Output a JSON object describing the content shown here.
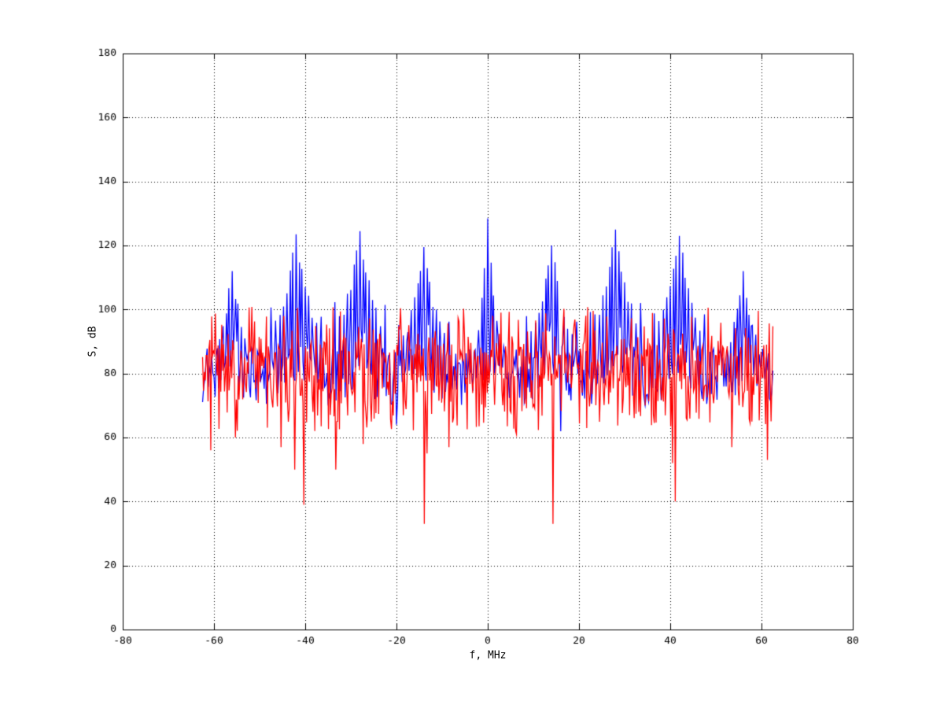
{
  "window": {
    "background": "#ffffff"
  },
  "chart_data": {
    "type": "line",
    "title": "",
    "xlabel": "f, MHz",
    "ylabel": "S, dB",
    "xlim": [
      -80,
      80
    ],
    "ylim": [
      0,
      180
    ],
    "xticks": [
      -80,
      -60,
      -40,
      -20,
      0,
      20,
      40,
      60,
      80
    ],
    "yticks": [
      0,
      20,
      40,
      60,
      80,
      100,
      120,
      140,
      160,
      180
    ],
    "grid": {
      "visible": true,
      "line_style": "dotted",
      "color": "#000000"
    },
    "background": "#ffffff",
    "axis_color": "#000000",
    "legend": null,
    "description": "Two overlaid dense noisy spectra from -62.5 to 62.5 MHz. Blue spectrum: noise floor near 80 dB with comb of peak clusters every 14 MHz (tallest 128.5 dB at 0 MHz, ~120-125 dB at +/-14, +/-28, +/-42, ~112 dB at +/-56). Red spectrum: dense noise band 62-100 dB with narrow deep notches down to 33-40 dB near -40, -14, +14 and +41 MHz.",
    "series": [
      {
        "name": "blue-spectrum",
        "color": "#0000ff",
        "draw_order": 1,
        "line_width": 1.25,
        "f_start": -62.5,
        "f_end": 62.5,
        "step": 0.25,
        "noise_base": 79,
        "noise_spread": 9,
        "skirt": {
          "width": 5,
          "amp": 13
        },
        "carrier_spacing_mhz": 14,
        "clusters": [
          {
            "f": 0,
            "peak": 128.5,
            "side_scale": 2.0
          },
          {
            "f": -14,
            "peak": 119.5,
            "side_scale": 1
          },
          {
            "f": 14,
            "peak": 120,
            "side_scale": 1
          },
          {
            "f": -28,
            "peak": 124.5,
            "side_scale": 1
          },
          {
            "f": 28,
            "peak": 125,
            "side_scale": 1
          },
          {
            "f": -42,
            "peak": 123.5,
            "side_scale": 1
          },
          {
            "f": 42,
            "peak": 123,
            "side_scale": 1
          },
          {
            "f": -56,
            "peak": 112,
            "side_scale": 1
          },
          {
            "f": 56,
            "peak": 112,
            "side_scale": 1
          }
        ],
        "side_offsets": [
          0,
          0.7,
          -0.7,
          1.35,
          -1.35,
          2.05,
          -2.05,
          2.75,
          -2.75,
          3.5,
          -3.5,
          4.5,
          -4.5,
          5.5,
          -5.5
        ],
        "side_drops": [
          0,
          7,
          7,
          12,
          12,
          17,
          17,
          21,
          21,
          25,
          25,
          28,
          28,
          24,
          24
        ],
        "dips": [
          {
            "f": -20,
            "v": 64
          },
          {
            "f": 15.9,
            "v": 62
          }
        ],
        "seed": 19
      },
      {
        "name": "red-spectrum",
        "color": "#ff0000",
        "draw_order": 2,
        "line_width": 1.25,
        "f_start": -62.5,
        "f_end": 62.5,
        "step": 0.2,
        "bands": [
          {
            "p": 0.3,
            "lo": 85,
            "hi": 101,
            "pow": 1.7
          },
          {
            "p": 0.35,
            "lo": 74,
            "hi": 90,
            "pow": 1
          },
          {
            "p": 0.35,
            "lo": 62,
            "hi": 80,
            "pow": 1
          }
        ],
        "dips": [
          {
            "f": -60.8,
            "v": 56
          },
          {
            "f": -55.3,
            "v": 60
          },
          {
            "f": -45.2,
            "v": 57
          },
          {
            "f": -42.4,
            "v": 50
          },
          {
            "f": -40.4,
            "v": 39
          },
          {
            "f": -33.2,
            "v": 50
          },
          {
            "f": -27.2,
            "v": 58
          },
          {
            "f": -13.9,
            "v": 33
          },
          {
            "f": -13.3,
            "v": 55
          },
          {
            "f": -8.6,
            "v": 57
          },
          {
            "f": 6.2,
            "v": 61
          },
          {
            "f": 14.3,
            "v": 33
          },
          {
            "f": 40.5,
            "v": 52
          },
          {
            "f": 41.0,
            "v": 40
          },
          {
            "f": 53.4,
            "v": 57
          },
          {
            "f": 61.2,
            "v": 53
          }
        ],
        "seed": 7
      }
    ]
  }
}
